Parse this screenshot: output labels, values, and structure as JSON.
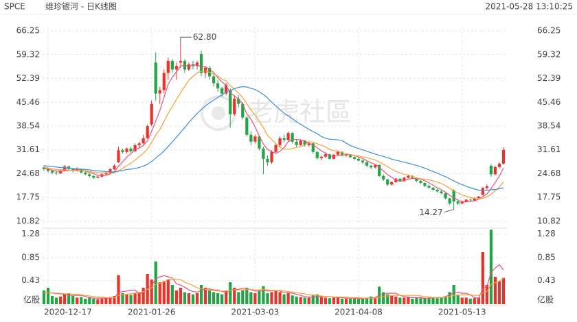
{
  "chart_data": {
    "type": "candlestick",
    "symbol": "SPCE",
    "title": "维珍银河 - 日K线图",
    "timestamp": "2021-05-28 13:10:25",
    "watermark": "老虎社區",
    "max_label": "62.80",
    "min_label": "14.27",
    "up_color": "#e8352b",
    "down_color": "#22a447",
    "grid": true,
    "categories": [
      null,
      "2020-12-17",
      null,
      null,
      null,
      null,
      null,
      null,
      null,
      null,
      null,
      null,
      null,
      null,
      null,
      null,
      null,
      null,
      null,
      null,
      null,
      null,
      null,
      null,
      null,
      null,
      "2021-01-26",
      null,
      null,
      null,
      null,
      null,
      null,
      null,
      null,
      null,
      null,
      null,
      null,
      null,
      null,
      null,
      null,
      null,
      null,
      null,
      null,
      null,
      null,
      null,
      null,
      "2021-03-03",
      null,
      null,
      null,
      null,
      null,
      null,
      null,
      null,
      null,
      null,
      null,
      null,
      null,
      null,
      null,
      null,
      null,
      null,
      null,
      null,
      null,
      null,
      null,
      null,
      "2021-04-08",
      null,
      null,
      null,
      null,
      null,
      null,
      null,
      null,
      null,
      null,
      null,
      null,
      null,
      null,
      null,
      null,
      null,
      null,
      null,
      null,
      null,
      null,
      null,
      null,
      "2021-05-13",
      null,
      null,
      null,
      null,
      null,
      null,
      null,
      null,
      null,
      null
    ],
    "open": [
      26.5,
      26,
      25.5,
      25,
      24.8,
      25.5,
      26.8,
      26,
      25.5,
      26,
      25,
      24.5,
      24,
      23.5,
      23.8,
      24.5,
      25,
      26,
      28,
      31.5,
      31,
      32,
      31.2,
      33,
      33.5,
      35,
      39,
      57,
      48,
      49,
      54,
      57.5,
      55,
      57,
      57.5,
      55,
      56.5,
      56,
      59.5,
      54,
      55.5,
      53,
      51,
      49.5,
      48,
      49,
      42,
      46.5,
      45,
      41,
      36,
      34,
      35.5,
      32,
      29,
      28,
      31,
      33,
      35,
      34.5,
      36.5,
      34,
      33,
      34.3,
      33,
      33.5,
      31,
      29.2,
      29.6,
      30.3,
      29,
      30.2,
      31,
      30,
      30.3,
      29.5,
      29,
      28.5,
      28,
      27,
      26.5,
      27.2,
      24,
      23,
      21.5,
      22.2,
      23.2,
      22.5,
      23.5,
      24,
      23.5,
      22.6,
      22,
      21.1,
      20.6,
      20,
      19.5,
      19,
      17.5,
      19.8,
      16.6,
      16,
      16.6,
      17.1,
      16.9,
      17.6,
      18.5,
      20.5,
      27,
      24.5,
      26.6,
      27.6
    ],
    "high": [
      27,
      26.5,
      25.8,
      25.5,
      26,
      27.2,
      27,
      26.3,
      26.5,
      26.2,
      25.3,
      24.8,
      24.3,
      24.2,
      24.8,
      25.3,
      26.3,
      27.5,
      32.5,
      32,
      32.3,
      32.5,
      33.5,
      34,
      36,
      39,
      46,
      60,
      50,
      55,
      58.5,
      58,
      57,
      62.8,
      58,
      57,
      57.5,
      57.5,
      60.5,
      56,
      56,
      53.5,
      52,
      50,
      51,
      49.5,
      47.5,
      47.5,
      45.5,
      41.5,
      37,
      36,
      35.8,
      32.5,
      30,
      31.5,
      33.5,
      35.5,
      36,
      37,
      36.8,
      34.5,
      34.8,
      34.5,
      34,
      33.8,
      31.3,
      30,
      30.8,
      30.5,
      30.5,
      31.5,
      31.2,
      30.6,
      30.4,
      29.8,
      29.3,
      28.8,
      28.2,
      27.3,
      27.5,
      27.4,
      24.5,
      23.2,
      22.5,
      23.5,
      23.4,
      23.8,
      24.5,
      24.2,
      23.6,
      22.8,
      22.1,
      21.5,
      20.8,
      20.3,
      19.8,
      19.1,
      17.7,
      20.2,
      16.9,
      16.8,
      17.3,
      17.4,
      17.8,
      18.2,
      20.8,
      21.6,
      27.5,
      27,
      28,
      32.4
    ],
    "low": [
      25.5,
      25,
      24.5,
      24.3,
      24.5,
      25.3,
      25.5,
      25,
      25.2,
      24.8,
      24.2,
      23.6,
      23.2,
      23.3,
      23.6,
      24.2,
      24.7,
      25.8,
      27.8,
      30.5,
      30.6,
      30.8,
      31,
      32.2,
      33.2,
      34.8,
      38.5,
      46,
      45,
      48,
      52,
      54,
      52,
      55.5,
      54,
      54.5,
      55,
      55,
      53,
      52.5,
      52,
      50,
      48.5,
      47,
      47.5,
      38,
      41.5,
      44,
      40.5,
      35.5,
      33,
      33.5,
      31.5,
      24.5,
      27,
      27.5,
      30.5,
      32.5,
      33.8,
      34,
      33.5,
      32.5,
      32.8,
      32.6,
      32.5,
      30.5,
      28.8,
      28.5,
      29.3,
      28.8,
      28.8,
      30,
      29.7,
      29.5,
      29.2,
      28.6,
      28.2,
      27.5,
      26.6,
      26,
      26.2,
      23.8,
      22.6,
      21,
      21.2,
      22,
      22.2,
      22.3,
      23.3,
      23.2,
      22.3,
      21.7,
      20.8,
      20.3,
      19.7,
      19.2,
      18.7,
      17.2,
      15.6,
      14.27,
      15.6,
      15.8,
      16.3,
      16.6,
      16.7,
      17.3,
      18.3,
      20,
      23.8,
      24.2,
      26.2,
      27.3
    ],
    "close": [
      26,
      25.5,
      25,
      24.8,
      25.5,
      26.8,
      26,
      25.5,
      26,
      25,
      24.5,
      24,
      23.5,
      23.8,
      24.5,
      25,
      26,
      27,
      31.5,
      31,
      32,
      31.2,
      33,
      33.5,
      35,
      38.5,
      45,
      48,
      49,
      54,
      57.5,
      55,
      56,
      57.5,
      55,
      56.5,
      56,
      57,
      54,
      55.5,
      53,
      51,
      49.5,
      48,
      50.5,
      42,
      46.5,
      45,
      41,
      36,
      34,
      35.5,
      32,
      29,
      28,
      31,
      33,
      35,
      34.5,
      36.5,
      34,
      33,
      34.3,
      33,
      33.5,
      31,
      29.2,
      29.6,
      30.3,
      29,
      30.2,
      31,
      30,
      30.3,
      29.5,
      29,
      28.5,
      28,
      27,
      26.5,
      27.2,
      24,
      23,
      21.5,
      22.2,
      23.2,
      22.5,
      23.5,
      24,
      23.5,
      22.6,
      22,
      21.1,
      20.6,
      20,
      19.5,
      19,
      17.5,
      16,
      16.6,
      16,
      16.6,
      17.1,
      16.9,
      17.6,
      18,
      20.5,
      21,
      24.5,
      26.6,
      27.6,
      31.6
    ],
    "ylim": [
      10.82,
      66.25
    ],
    "yticks": [
      66.25,
      59.32,
      52.39,
      45.46,
      38.54,
      31.61,
      24.68,
      17.75,
      10.82
    ],
    "ma_series": [
      {
        "color": "#e8507e",
        "values": [
          26.2,
          26,
          25.7,
          25.4,
          25.4,
          25.5,
          25.6,
          25.7,
          26,
          25.9,
          25.4,
          25,
          24.7,
          24.2,
          24.1,
          24.2,
          24.6,
          25.3,
          26.8,
          28.1,
          29.5,
          30.5,
          31.7,
          32.1,
          32.9,
          34.2,
          37,
          40,
          43.1,
          46.9,
          50.7,
          52.7,
          54.3,
          56,
          56.2,
          56,
          56.2,
          56.4,
          55.7,
          55.8,
          55.1,
          54.1,
          52.6,
          51.4,
          50.4,
          48.2,
          47.3,
          46.4,
          45,
          42.1,
          40.5,
          38.3,
          35.7,
          33.3,
          31.7,
          31.1,
          30.6,
          31.2,
          32.3,
          34,
          34.6,
          34.6,
          34.5,
          34.2,
          33.6,
          33,
          32.2,
          31.3,
          30.7,
          29.8,
          29.7,
          30,
          30.1,
          30.1,
          30.2,
          30,
          29.5,
          29.1,
          28.4,
          27.8,
          27.4,
          26.5,
          25.5,
          24.4,
          23.6,
          22.8,
          22.5,
          22.6,
          23.1,
          23.3,
          23.2,
          23.1,
          22.6,
          22,
          21.3,
          20.6,
          20,
          19.3,
          18.4,
          17.7,
          17,
          16.5,
          16.5,
          16.6,
          16.8,
          17.2,
          18,
          18.8,
          20.3,
          22.1,
          24,
          26.3
        ]
      },
      {
        "color": "#f4a233",
        "values": [
          26.5,
          26.3,
          26.1,
          25.9,
          25.8,
          25.8,
          25.7,
          25.6,
          25.6,
          25.6,
          25.5,
          25.3,
          25.1,
          25,
          24.9,
          24.8,
          24.8,
          24.9,
          25.5,
          26.2,
          27,
          27.7,
          28.6,
          29.6,
          30.6,
          31.9,
          33.8,
          35.9,
          37.6,
          39.9,
          42.2,
          44.2,
          46.3,
          48.2,
          50.1,
          51.9,
          53,
          54,
          54.5,
          54.6,
          54.1,
          53.7,
          53.1,
          52.2,
          51.7,
          50.3,
          49.3,
          48.1,
          46.8,
          45.1,
          43.2,
          41.7,
          40,
          38.1,
          35.8,
          34.7,
          33.4,
          32.4,
          31.8,
          31.8,
          32,
          32.3,
          32.5,
          33.1,
          34,
          33.8,
          33.4,
          32.9,
          32.5,
          31.7,
          31.4,
          31.2,
          30.8,
          30.5,
          30.1,
          29.9,
          29.8,
          29.6,
          29.3,
          29,
          28.7,
          28.1,
          27.4,
          26.7,
          26,
          25.4,
          24.9,
          24.5,
          24.2,
          23.9,
          23.4,
          23.2,
          23,
          22.9,
          22.6,
          22.2,
          21.8,
          21.2,
          20.4,
          19.7,
          19.1,
          18.5,
          18.1,
          17.7,
          17.5,
          17.3,
          17.5,
          17.9,
          18.7,
          19.7,
          20.8,
          22.3
        ]
      },
      {
        "color": "#3d8fd9",
        "values": [
          27,
          26.9,
          26.8,
          26.6,
          26.5,
          26.4,
          26.3,
          26.2,
          26.1,
          26,
          25.9,
          25.8,
          25.6,
          25.5,
          25.4,
          25.3,
          25.2,
          25.2,
          25.4,
          25.6,
          25.9,
          26,
          26.2,
          26.5,
          26.9,
          27.4,
          28.2,
          29.2,
          30.2,
          31.3,
          32.6,
          33.9,
          35.3,
          36.7,
          38.1,
          39.6,
          40.9,
          42.2,
          43.3,
          44.4,
          45.3,
          46.1,
          46.9,
          47.6,
          48.5,
          48.9,
          49.4,
          49.8,
          50,
          49.9,
          49.5,
          49.2,
          48.5,
          47.7,
          46.7,
          45.5,
          44.4,
          43.3,
          42.3,
          41.5,
          40.7,
          39.8,
          39.1,
          38.3,
          37.6,
          36.9,
          36.3,
          35.5,
          35,
          34.7,
          34.6,
          34.5,
          34.3,
          33.6,
          32.9,
          32.4,
          32,
          31.6,
          31.2,
          30.8,
          30.4,
          30,
          29.7,
          29.3,
          28.9,
          28.6,
          28.3,
          28,
          27.7,
          27.4,
          27.1,
          26.7,
          26.3,
          25.8,
          25.3,
          24.8,
          24.3,
          23.8,
          23.2,
          22.6,
          22,
          21.5,
          21,
          20.6,
          20.2,
          19.9,
          19.8,
          19.8,
          20,
          20.1,
          20.3,
          20.6
        ]
      }
    ],
    "volume": {
      "values": [
        0.25,
        0.3,
        0.15,
        0.12,
        0.14,
        0.18,
        0.2,
        0.15,
        0.12,
        0.13,
        0.1,
        0.12,
        0.1,
        0.09,
        0.1,
        0.12,
        0.13,
        0.15,
        0.53,
        0.2,
        0.18,
        0.17,
        0.2,
        0.22,
        0.3,
        0.55,
        0.45,
        0.78,
        0.4,
        0.42,
        0.45,
        0.35,
        0.25,
        0.3,
        0.22,
        0.2,
        0.18,
        0.2,
        0.35,
        0.3,
        0.25,
        0.22,
        0.2,
        0.18,
        0.25,
        0.4,
        0.3,
        0.22,
        0.25,
        0.3,
        0.22,
        0.2,
        0.25,
        0.33,
        0.2,
        0.22,
        0.24,
        0.22,
        0.18,
        0.2,
        0.16,
        0.14,
        0.13,
        0.12,
        0.12,
        0.16,
        0.18,
        0.13,
        0.12,
        0.11,
        0.12,
        0.13,
        0.1,
        0.1,
        0.1,
        0.1,
        0.1,
        0.11,
        0.12,
        0.14,
        0.12,
        0.32,
        0.22,
        0.18,
        0.15,
        0.14,
        0.12,
        0.12,
        0.13,
        0.1,
        0.12,
        0.11,
        0.11,
        0.12,
        0.12,
        0.11,
        0.12,
        0.14,
        0.22,
        0.35,
        0.16,
        0.12,
        0.12,
        0.1,
        0.11,
        0.12,
        0.95,
        0.35,
        1.36,
        0.5,
        0.42,
        0.48
      ],
      "ylim": [
        0,
        1.37
      ],
      "yticks": [
        {
          "value": 0,
          "label": "亿股"
        },
        0.43,
        0.85,
        1.28
      ],
      "ma_series": [
        {
          "color": "#e8507e",
          "values": [
            0.2,
            0.22,
            0.2,
            0.19,
            0.19,
            0.18,
            0.16,
            0.16,
            0.16,
            0.16,
            0.14,
            0.12,
            0.11,
            0.11,
            0.11,
            0.11,
            0.11,
            0.12,
            0.21,
            0.23,
            0.24,
            0.25,
            0.26,
            0.19,
            0.21,
            0.29,
            0.34,
            0.46,
            0.5,
            0.52,
            0.5,
            0.48,
            0.37,
            0.35,
            0.31,
            0.26,
            0.23,
            0.22,
            0.25,
            0.27,
            0.28,
            0.26,
            0.26,
            0.23,
            0.22,
            0.25,
            0.27,
            0.27,
            0.29,
            0.29,
            0.26,
            0.24,
            0.24,
            0.26,
            0.24,
            0.24,
            0.25,
            0.24,
            0.21,
            0.21,
            0.2,
            0.18,
            0.16,
            0.14,
            0.13,
            0.13,
            0.14,
            0.14,
            0.14,
            0.14,
            0.13,
            0.12,
            0.12,
            0.11,
            0.11,
            0.11,
            0.1,
            0.1,
            0.11,
            0.11,
            0.12,
            0.17,
            0.18,
            0.2,
            0.2,
            0.2,
            0.16,
            0.14,
            0.13,
            0.12,
            0.12,
            0.12,
            0.11,
            0.11,
            0.12,
            0.12,
            0.12,
            0.14,
            0.17,
            0.21,
            0.22,
            0.2,
            0.2,
            0.17,
            0.12,
            0.11,
            0.28,
            0.33,
            0.58,
            0.66,
            0.72,
            0.62
          ]
        },
        {
          "color": "#f4a233",
          "values": [
            0.21,
            0.21,
            0.2,
            0.2,
            0.2,
            0.19,
            0.19,
            0.18,
            0.18,
            0.17,
            0.16,
            0.15,
            0.14,
            0.13,
            0.13,
            0.12,
            0.12,
            0.12,
            0.16,
            0.17,
            0.18,
            0.19,
            0.2,
            0.21,
            0.23,
            0.27,
            0.3,
            0.36,
            0.38,
            0.41,
            0.45,
            0.46,
            0.45,
            0.45,
            0.4,
            0.37,
            0.34,
            0.3,
            0.28,
            0.27,
            0.26,
            0.25,
            0.24,
            0.24,
            0.24,
            0.25,
            0.26,
            0.26,
            0.26,
            0.27,
            0.27,
            0.26,
            0.26,
            0.27,
            0.26,
            0.25,
            0.25,
            0.25,
            0.24,
            0.23,
            0.22,
            0.21,
            0.2,
            0.19,
            0.17,
            0.17,
            0.16,
            0.15,
            0.14,
            0.14,
            0.13,
            0.13,
            0.13,
            0.13,
            0.12,
            0.12,
            0.12,
            0.11,
            0.11,
            0.11,
            0.11,
            0.13,
            0.14,
            0.15,
            0.16,
            0.16,
            0.16,
            0.16,
            0.16,
            0.16,
            0.16,
            0.15,
            0.14,
            0.13,
            0.12,
            0.12,
            0.12,
            0.13,
            0.14,
            0.16,
            0.17,
            0.17,
            0.17,
            0.17,
            0.16,
            0.16,
            0.21,
            0.23,
            0.36,
            0.39,
            0.42,
            0.47
          ]
        }
      ]
    }
  }
}
